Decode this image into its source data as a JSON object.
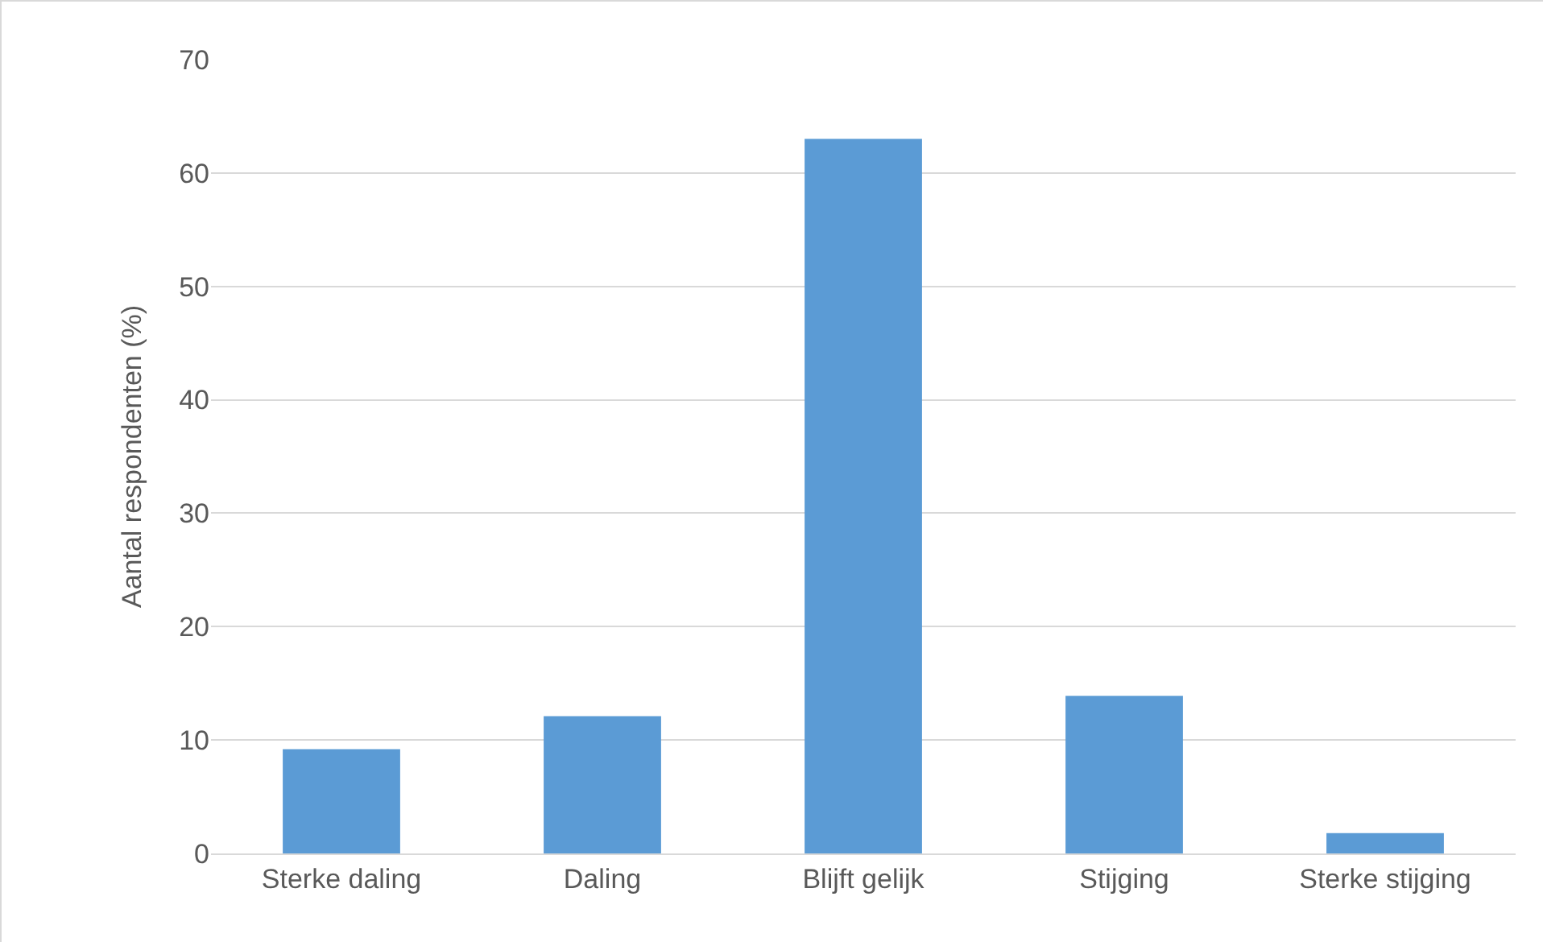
{
  "chart_data": {
    "type": "bar",
    "ylabel": "Aantal respondenten (%)",
    "categories": [
      "Sterke daling",
      "Daling",
      "Blijft gelijk",
      "Stijging",
      "Sterke stijging"
    ],
    "values": [
      9.2,
      12.1,
      63.0,
      13.9,
      1.8
    ],
    "color": "#5b9bd5",
    "ylim": [
      0,
      70
    ],
    "yticks": [
      0,
      10,
      20,
      30,
      40,
      50,
      60,
      70
    ],
    "grid": "y"
  }
}
